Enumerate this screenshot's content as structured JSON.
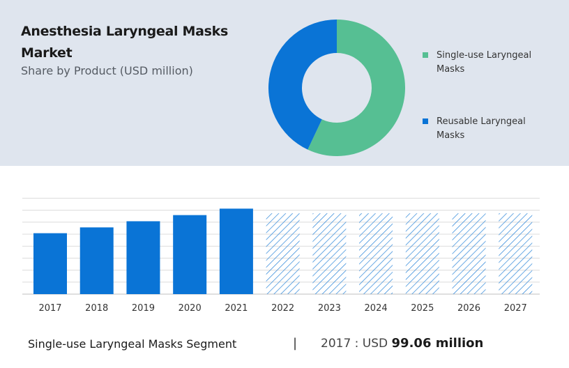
{
  "title": "Anesthesia Laryngeal Masks Market",
  "subtitle": "Share by Product (USD million)",
  "colors": {
    "single_use": "#56bf93",
    "reusable": "#0a74d6",
    "panel_bg": "#dfe5ee",
    "hatch": "#2a85d8"
  },
  "chart_data": [
    {
      "type": "pie",
      "donut": true,
      "categories": [
        "Single-use Laryngeal Masks",
        "Reusable Laryngeal Masks"
      ],
      "values": [
        57,
        43
      ],
      "legend_position": "right"
    },
    {
      "type": "bar",
      "categories": [
        "2017",
        "2018",
        "2019",
        "2020",
        "2021",
        "2022",
        "2023",
        "2024",
        "2025",
        "2026",
        "2027"
      ],
      "values": [
        99.06,
        108.5,
        118.5,
        128.5,
        139.0,
        null,
        null,
        null,
        null,
        null,
        null
      ],
      "forecast_categories": [
        "2022",
        "2023",
        "2024",
        "2025",
        "2026",
        "2027"
      ],
      "forecast_style": "hatched",
      "grid": true,
      "ylim": [
        0,
        170
      ]
    }
  ],
  "footer": {
    "segment": "Single-use Laryngeal Masks Segment",
    "divider": "|",
    "year_label": "2017 : USD ",
    "value": "99.06 million"
  }
}
